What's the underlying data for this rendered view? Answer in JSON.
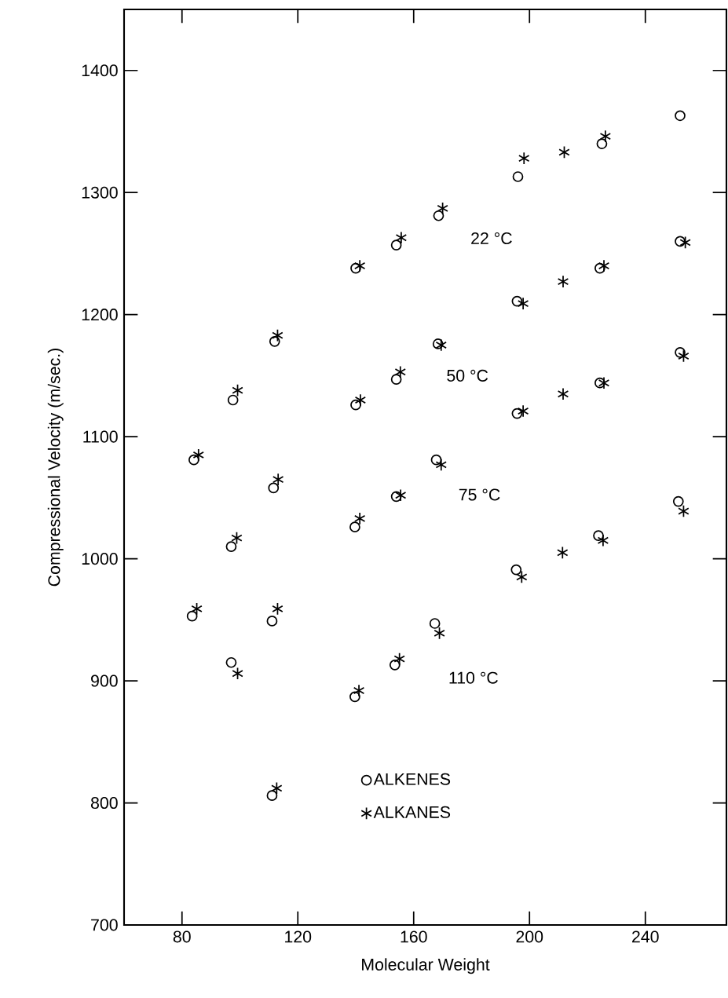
{
  "chart_data": {
    "type": "scatter",
    "xlabel": "Molecular Weight",
    "ylabel": "Compressional Velocity (m/sec.)",
    "xlim": [
      60,
      268
    ],
    "ylim": [
      700,
      1450
    ],
    "xticks": [
      80,
      120,
      160,
      200,
      240
    ],
    "yticks": [
      700,
      800,
      900,
      1000,
      1100,
      1200,
      1300,
      1400
    ],
    "grid": false,
    "legend": "bottom",
    "series": [
      {
        "name": "ALKENES",
        "color": "#000000",
        "marker": "circle",
        "x": [
          154,
          140,
          112,
          97.6,
          154,
          140,
          252,
          225,
          196,
          168.6,
          252,
          224.3,
          195.7,
          168.4,
          252,
          224.3,
          195.7,
          84.1,
          111.6,
          97,
          154,
          139.7,
          83.5,
          111.1,
          97,
          153.5,
          139.7,
          111.1,
          167.8,
          251.4,
          223.8,
          195.4,
          167.3
        ],
        "values": [
          1257,
          1238,
          1178,
          1130,
          1147,
          1126,
          1363,
          1340,
          1313,
          1281,
          1260,
          1238,
          1211,
          1176,
          1169,
          1144,
          1119,
          1081,
          1058,
          1010,
          1051,
          1026,
          953,
          949,
          915,
          913,
          887,
          806,
          1081,
          1047,
          1019,
          991,
          947
        ]
      },
      {
        "name": "ALKANES",
        "color": "#000000",
        "marker": "cross",
        "x": [
          155.7,
          141.4,
          113,
          99.2,
          155.4,
          141.6,
          226.2,
          212,
          198.1,
          170,
          253.8,
          225.7,
          211.6,
          197.8,
          169.5,
          253.2,
          225.7,
          211.6,
          197.8,
          85.7,
          113.2,
          98.9,
          155.5,
          141.4,
          85.1,
          113,
          99.2,
          155.1,
          141.1,
          112.7,
          169.5,
          253.2,
          225.4,
          211.4,
          197.3,
          168.9
        ],
        "values": [
          1263,
          1240,
          1183,
          1138,
          1153,
          1130,
          1346,
          1333,
          1328,
          1287,
          1259,
          1240,
          1227,
          1209,
          1175,
          1166,
          1144,
          1135,
          1121,
          1085,
          1065,
          1017,
          1052,
          1033,
          959,
          959,
          906,
          918,
          892,
          812,
          1077,
          1039,
          1015,
          1005,
          985,
          939
        ]
      }
    ],
    "annotations": [
      "22 °C",
      "50 °C",
      "75 °C",
      "110 °C"
    ]
  }
}
